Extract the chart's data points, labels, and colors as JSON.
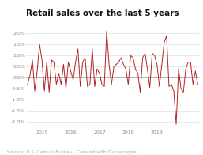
{
  "title": "Retail sales over the last 5 years",
  "source": "Source: U.S. Census Bureau · Created with Datawrapper",
  "xlim": [
    -0.5,
    71.5
  ],
  "ylim": [
    -0.023,
    0.026
  ],
  "yticks": [
    -0.02,
    -0.015,
    -0.01,
    -0.005,
    0.0,
    0.005,
    0.01,
    0.015,
    0.02
  ],
  "xtick_positions": [
    6,
    18,
    30,
    42,
    54,
    66
  ],
  "xtick_labels": [
    "2015",
    "2016",
    "2017",
    "2018",
    "2019",
    ""
  ],
  "background_color": "#ffffff",
  "line_color": "#b22222",
  "zero_line_color": "#aaaaaa",
  "grid_color": "#e0e0e0",
  "title_fontsize": 7.5,
  "tick_fontsize": 4.5,
  "source_fontsize": 4.2,
  "values": [
    -0.003,
    0.001,
    0.008,
    -0.006,
    0.003,
    0.015,
    0.008,
    -0.006,
    0.007,
    -0.0065,
    0.008,
    0.007,
    -0.003,
    0.002,
    -0.003,
    0.006,
    -0.005,
    0.007,
    0.003,
    -0.001,
    0.007,
    0.013,
    -0.004,
    0.007,
    0.009,
    -0.004,
    -0.003,
    0.013,
    -0.004,
    0.004,
    0.002,
    -0.003,
    -0.004,
    0.021,
    0.006,
    -0.003,
    0.005,
    0.006,
    0.007,
    0.009,
    0.006,
    0.004,
    -0.003,
    0.01,
    0.009,
    0.004,
    0.002,
    -0.0065,
    0.009,
    0.011,
    0.004,
    -0.0045,
    0.011,
    0.01,
    0.006,
    -0.004,
    0.006,
    0.016,
    0.019,
    -0.004,
    -0.003,
    -0.006,
    -0.021,
    0.004,
    -0.005,
    -0.0065,
    0.004,
    0.007,
    0.007,
    -0.003,
    0.003,
    -0.003
  ]
}
